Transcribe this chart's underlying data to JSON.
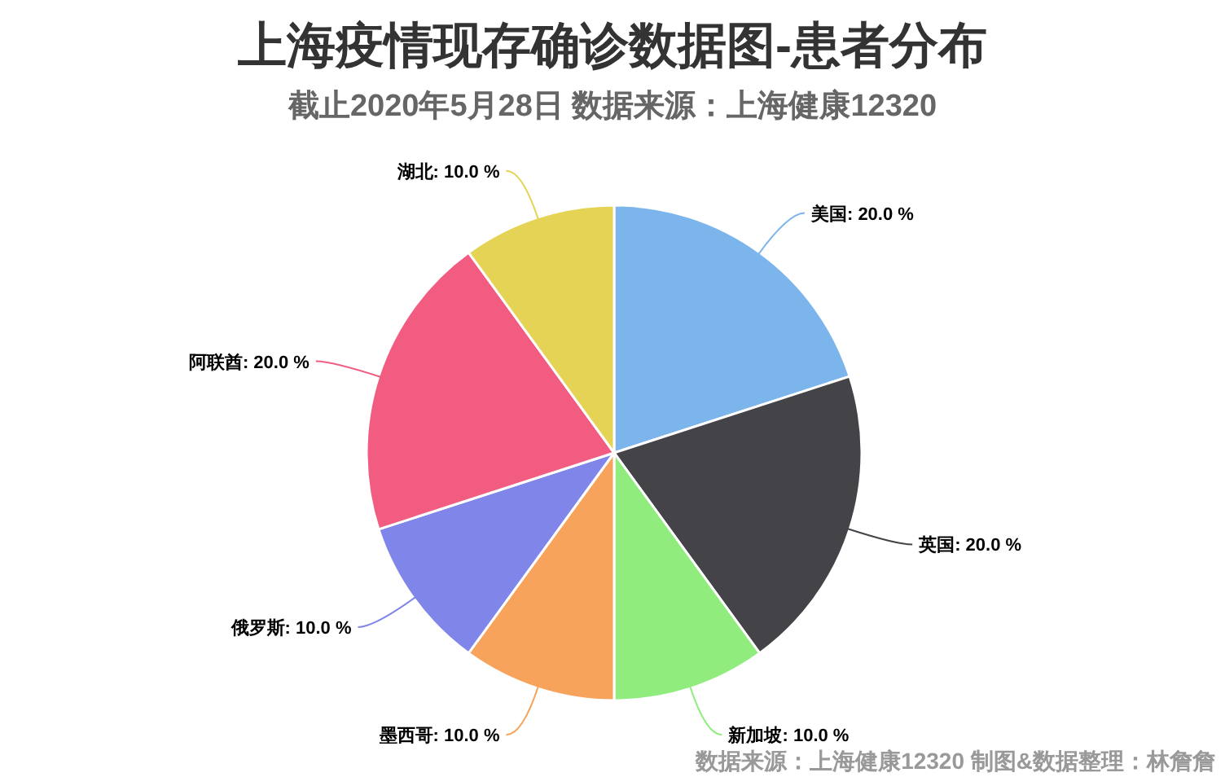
{
  "chart_data": {
    "type": "pie",
    "title": "上海疫情现存确诊数据图-患者分布",
    "subtitle": "截止2020年5月28日 数据来源：上海健康12320",
    "categories": [
      "美国",
      "英国",
      "新加坡",
      "墨西哥",
      "俄罗斯",
      "阿联酋",
      "湖北"
    ],
    "values": [
      20,
      20,
      10,
      10,
      10,
      20,
      10
    ],
    "colors": [
      "#7cb5ec",
      "#434348",
      "#90ed7d",
      "#f7a35c",
      "#8085e9",
      "#f15c80",
      "#e4d354"
    ],
    "value_labels": [
      "20.0 %",
      "20.0 %",
      "10.0 %",
      "10.0 %",
      "10.0 %",
      "20.0 %",
      "10.0 %"
    ],
    "annotations": [
      "数据来源：上海健康12320 制图&数据整理：林詹詹"
    ]
  }
}
